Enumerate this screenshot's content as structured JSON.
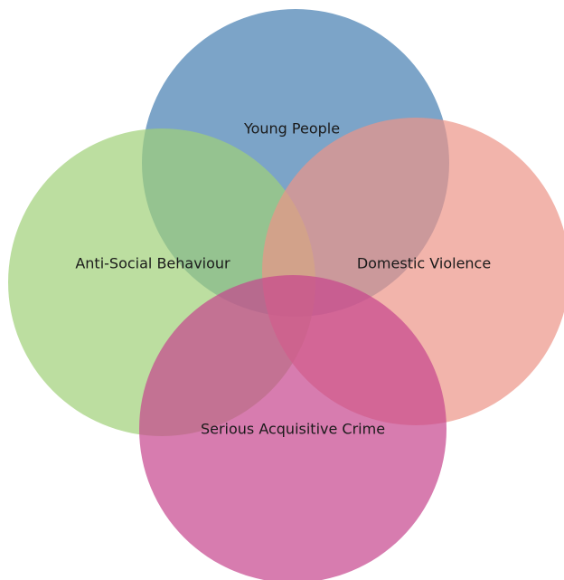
{
  "nodes": [
    {
      "label": "Young People"
    },
    {
      "label": "Anti-Social Behaviour"
    },
    {
      "label": "Domestic Violence"
    },
    {
      "label": "Serious Acquisitive Crime"
    }
  ]
}
